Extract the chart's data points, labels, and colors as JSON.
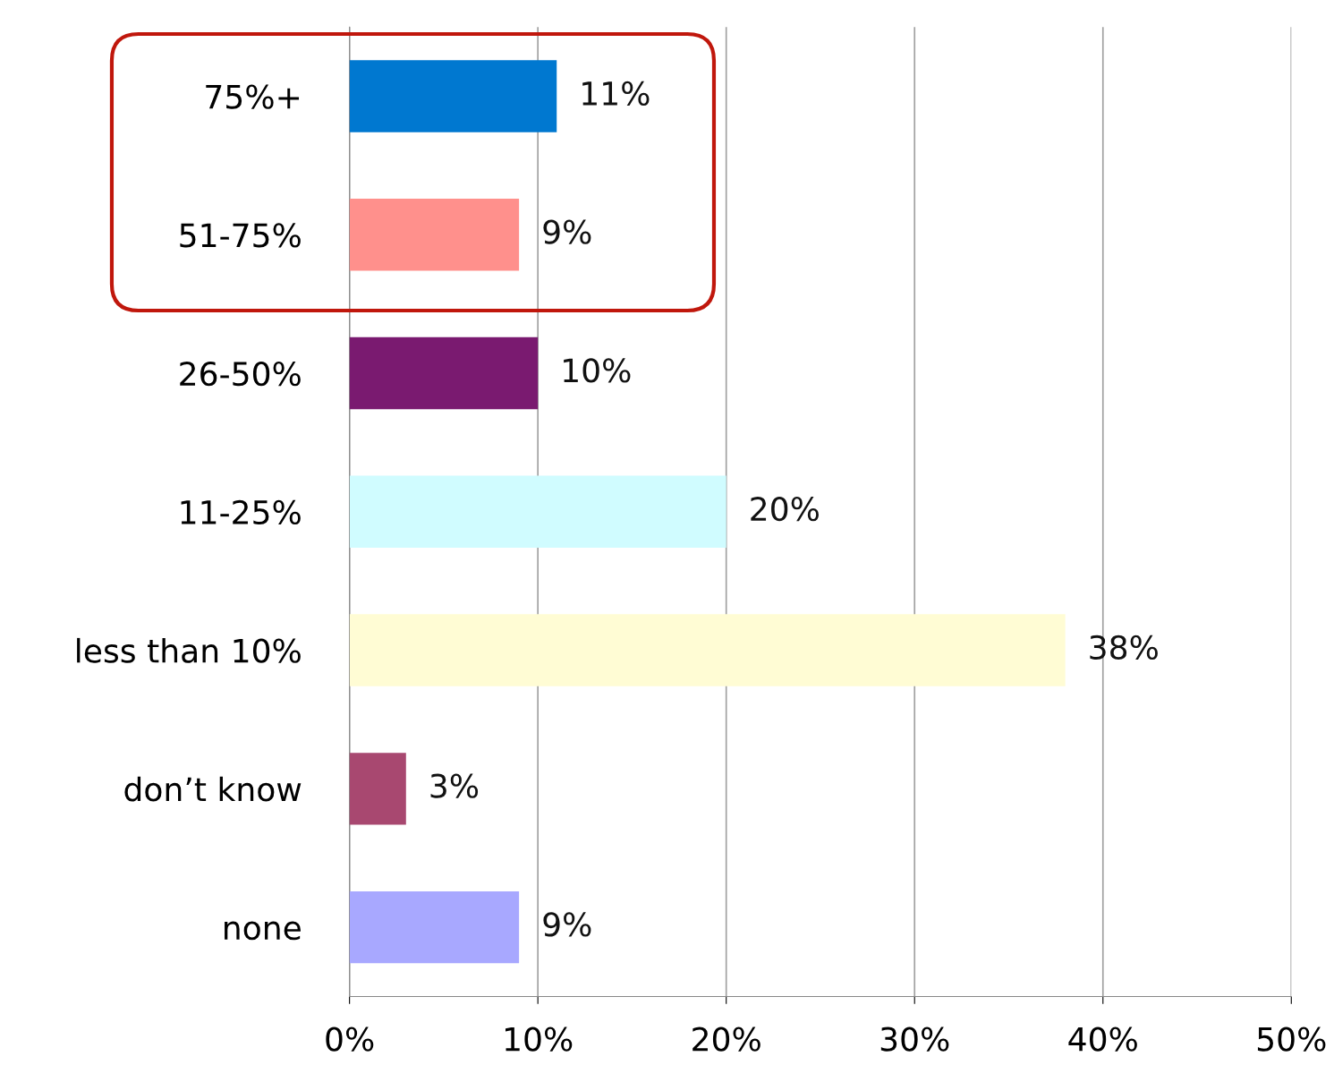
{
  "chart_data": {
    "type": "bar",
    "orientation": "horizontal",
    "categories": [
      "75%+",
      "51-75%",
      "26-50%",
      "11-25%",
      "less than 10%",
      "don’t know",
      "none"
    ],
    "values": [
      11,
      9,
      10,
      20,
      38,
      3,
      9
    ],
    "colors": [
      "#0078d0",
      "#ff908c",
      "#7a1a70",
      "#d0fcff",
      "#fffcd4",
      "#a84870",
      "#a8a8ff"
    ],
    "value_labels": [
      "11%",
      "9%",
      "10%",
      "20%",
      "38%",
      "3%",
      "9%"
    ],
    "xlim": [
      0,
      50
    ],
    "xticks": [
      {
        "value": 0,
        "label": "0%"
      },
      {
        "value": 10,
        "label": "10%"
      },
      {
        "value": 20,
        "label": "20%"
      },
      {
        "value": 30,
        "label": "30%"
      },
      {
        "value": 40,
        "label": "40%"
      },
      {
        "value": 50,
        "label": "50%"
      }
    ],
    "grid": "x",
    "legend": false
  }
}
